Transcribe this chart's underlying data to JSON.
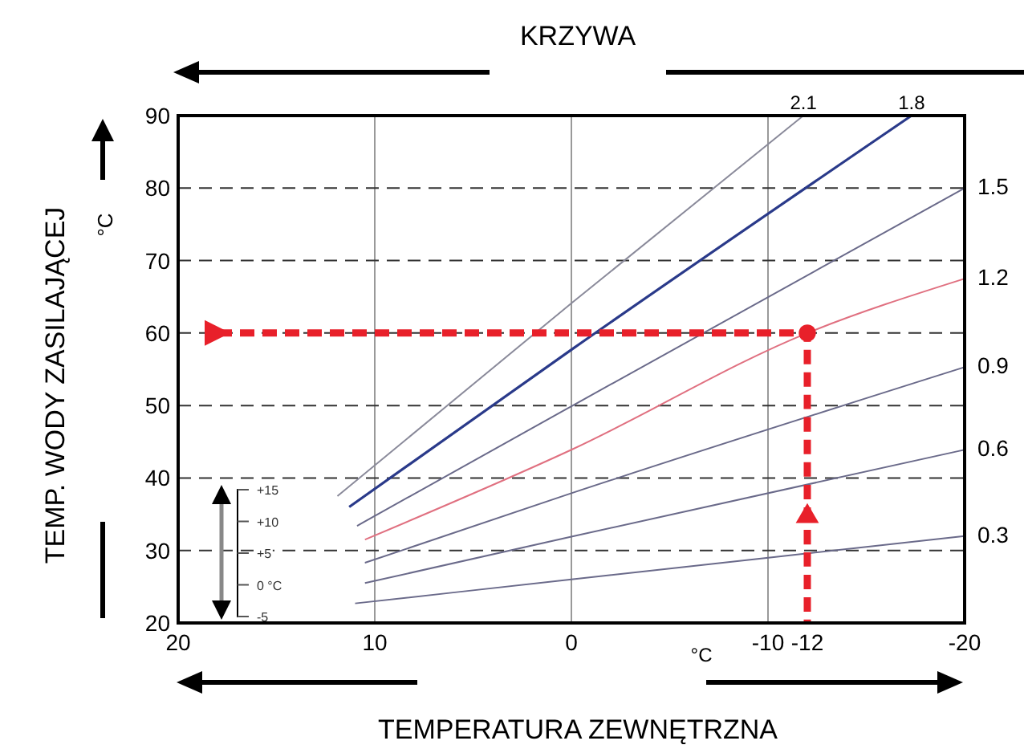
{
  "chart_data": {
    "type": "line",
    "title": "KRZYWA",
    "xlabel": "TEMPERATURA ZEWNĘTRZNA",
    "ylabel": "TEMP. WODY ZASILAJĄCEJ",
    "annotations": [
      "°C",
      "°C",
      "+15",
      "+10",
      "+5",
      "0 °C",
      "-5"
    ],
    "xlim": [
      20,
      -20
    ],
    "xticks": [
      20,
      10,
      0,
      -10,
      -12,
      -20
    ],
    "ylim": [
      20,
      90
    ],
    "yticks": [
      20,
      30,
      40,
      50,
      60,
      70,
      80,
      90
    ],
    "grid": true,
    "marker": "none",
    "series": [
      {
        "name": "2.1",
        "color": "#8a8a9a",
        "x": [
          11.9,
          0,
          -11.8
        ],
        "values": [
          37.5,
          64.1,
          90
        ]
      },
      {
        "name": "1.8",
        "color": "#2a3a8a",
        "x": [
          11.3,
          0,
          -17.3
        ],
        "values": [
          36,
          57.7,
          90
        ]
      },
      {
        "name": "1.5",
        "color": "#6a6a8a",
        "x": [
          10.9,
          0,
          -20
        ],
        "values": [
          33.4,
          49.9,
          80
        ]
      },
      {
        "name": "1.2",
        "color": "#e07080",
        "x": [
          10.5,
          0,
          -12,
          -20
        ],
        "values": [
          31.5,
          43.9,
          60,
          67.5
        ]
      },
      {
        "name": "0.9",
        "color": "#6a6a8a",
        "x": [
          10.5,
          0,
          -20
        ],
        "values": [
          28.3,
          37.9,
          55.3
        ]
      },
      {
        "name": "0.6",
        "color": "#6a6a8a",
        "x": [
          10.5,
          0,
          -20
        ],
        "values": [
          25.5,
          31.9,
          43.9
        ]
      },
      {
        "name": "0.3",
        "color": "#6a6a8a",
        "x": [
          11,
          0,
          -20
        ],
        "values": [
          22.7,
          26,
          32
        ]
      },
      {
        "type": "line",
        "line_style": "dashed",
        "color": "#e8202a",
        "x": [
          18,
          -12,
          -12
        ],
        "values": [
          60,
          60,
          20
        ]
      },
      {
        "type": "scatter",
        "marker": "circle",
        "color": "#e8202a",
        "x": [
          -12
        ],
        "values": [
          60
        ]
      },
      {
        "type": "scatter",
        "marker": "triangle",
        "color": "#e8202a",
        "x": [
          -12
        ],
        "values": [
          34.7
        ]
      }
    ]
  }
}
